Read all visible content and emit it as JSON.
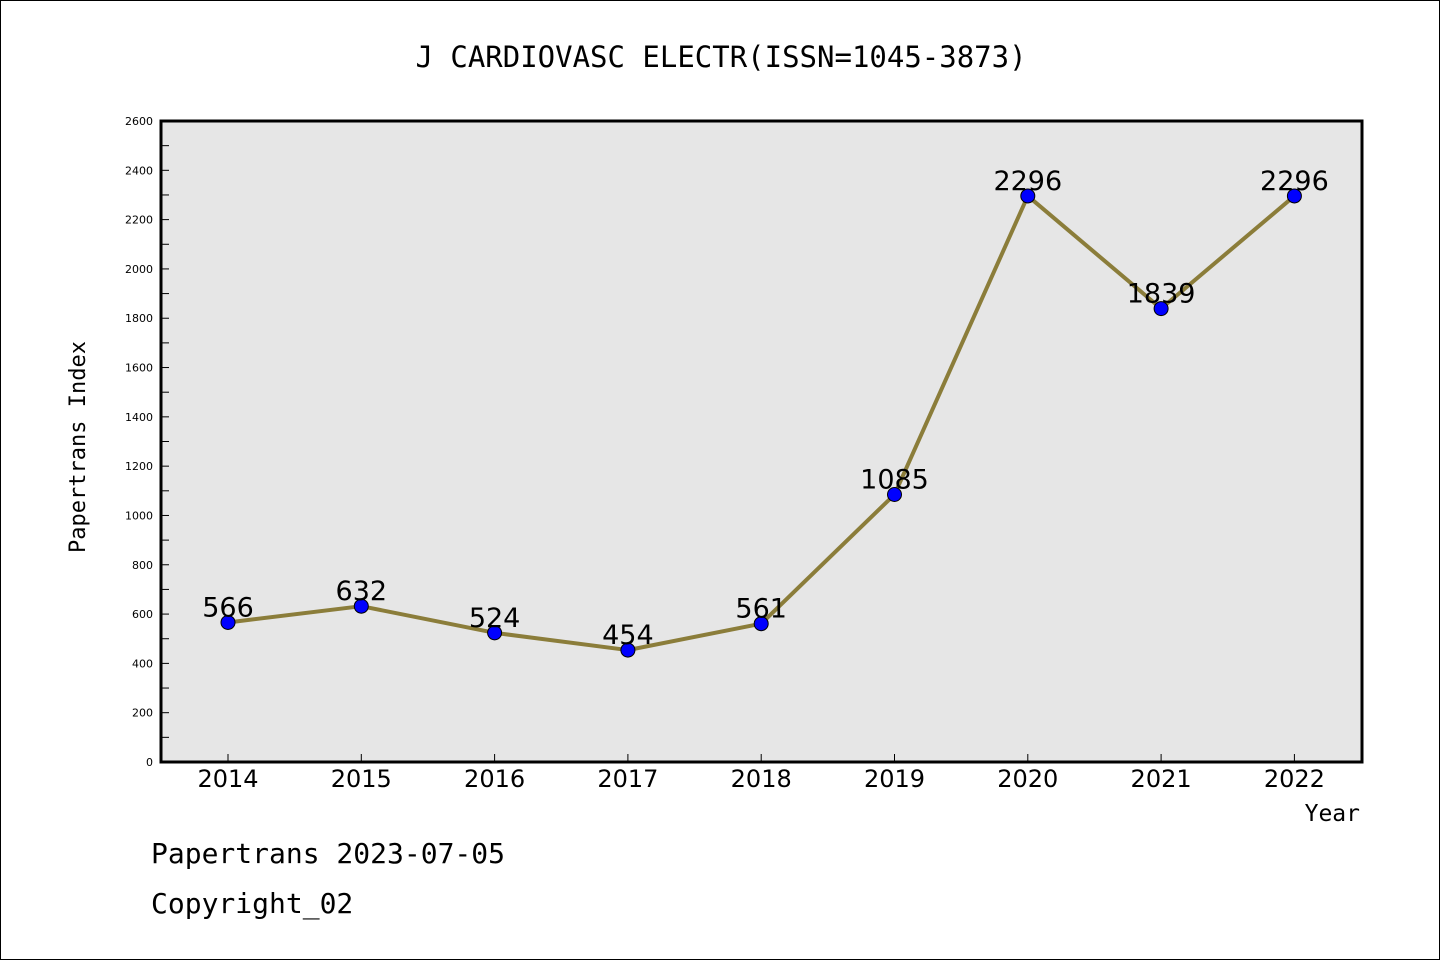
{
  "chart_data": {
    "type": "line",
    "title": "J CARDIOVASC ELECTR(ISSN=1045-3873)",
    "xlabel": "Year",
    "ylabel": "Papertrans Index",
    "categories": [
      "2014",
      "2015",
      "2016",
      "2017",
      "2018",
      "2019",
      "2020",
      "2021",
      "2022"
    ],
    "values": [
      566,
      632,
      524,
      454,
      561,
      1085,
      2296,
      1839,
      2296
    ],
    "data_labels": [
      "566",
      "632",
      "524",
      "454",
      "561",
      "1085",
      "2296",
      "1839",
      "2296"
    ],
    "ylim": [
      0,
      2600
    ],
    "yticks": [
      0,
      200,
      400,
      600,
      800,
      1000,
      1200,
      1400,
      1600,
      1800,
      2000,
      2200,
      2400,
      2600
    ],
    "ytick_labels": [
      "0",
      "200",
      "400",
      "600",
      "800",
      "1000",
      "1200",
      "1400",
      "1600",
      "1800",
      "2000",
      "2200",
      "2400",
      "2600"
    ],
    "grid": false,
    "colors": {
      "line": "#8B7D3A",
      "marker": "#0000FF",
      "plot_bg": "#E6E6E6"
    }
  },
  "footer": {
    "line1": "Papertrans 2023-07-05",
    "line2": "Copyright_02"
  }
}
